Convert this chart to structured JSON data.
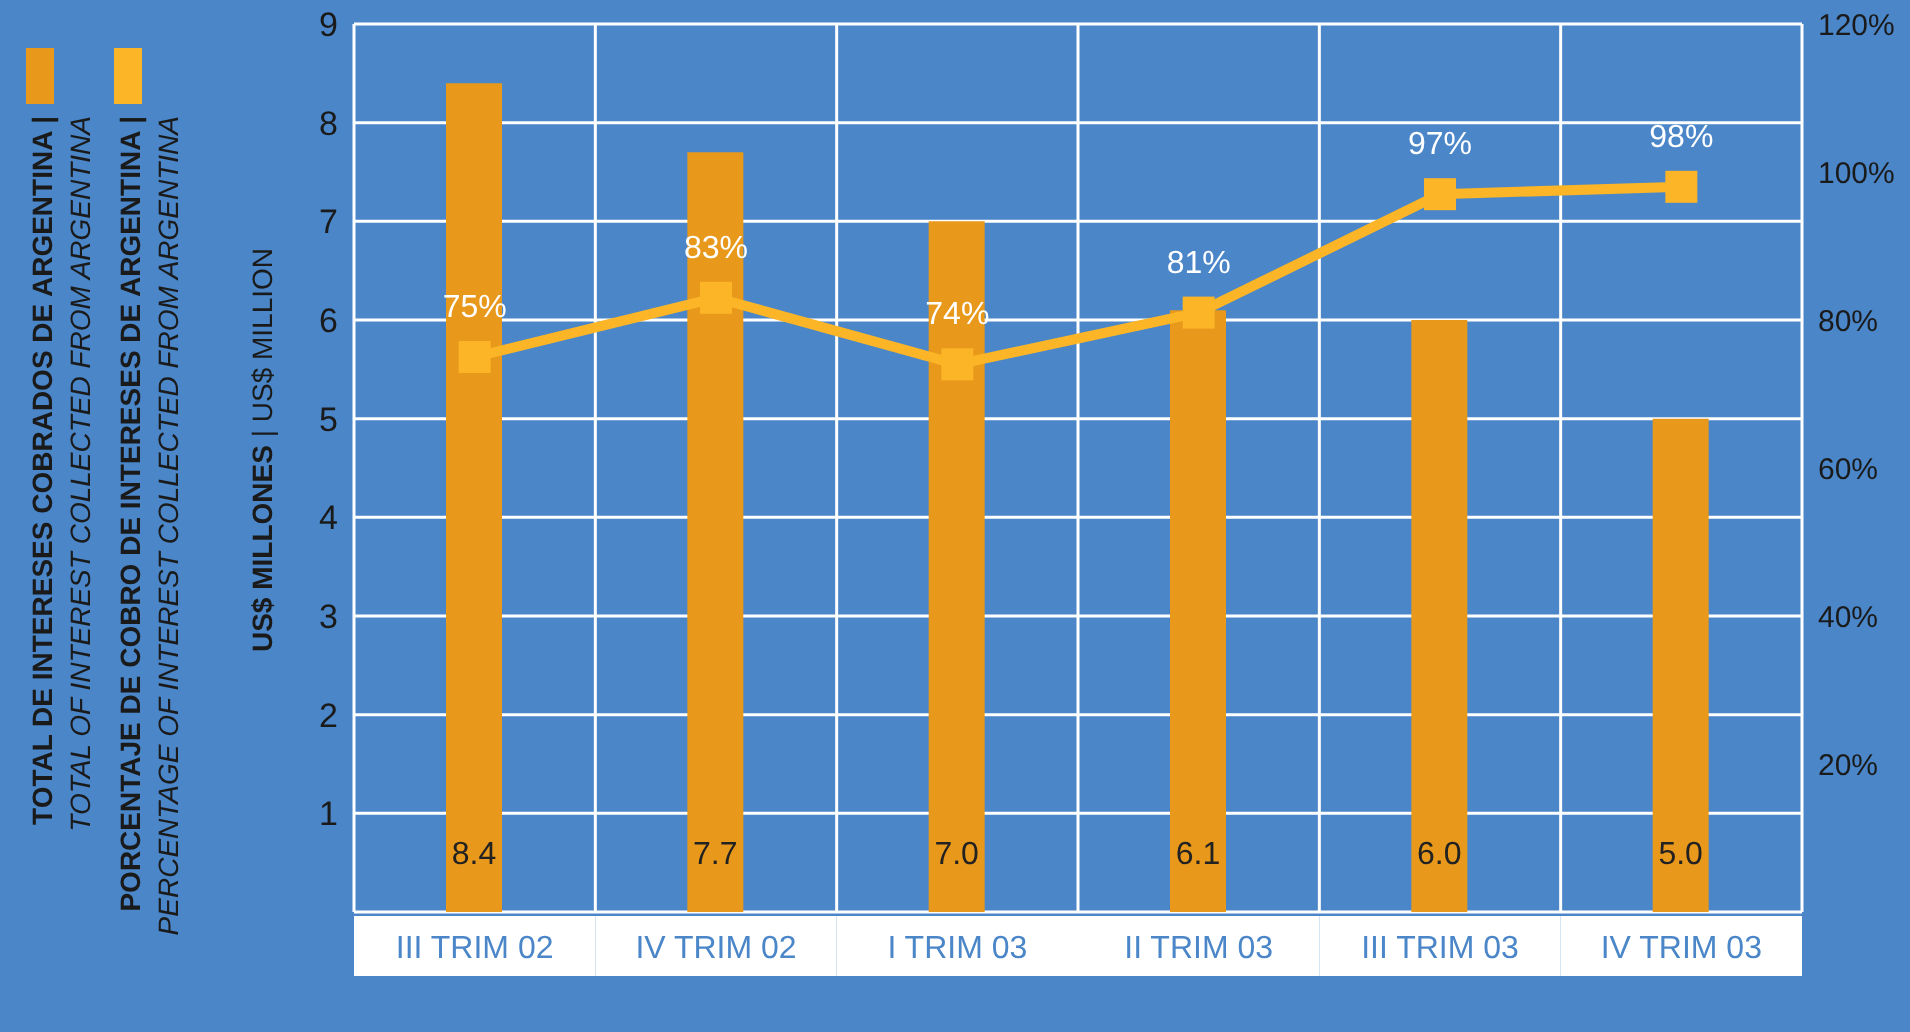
{
  "chart_data": {
    "type": "bar",
    "categories": [
      "III TRIM 02",
      "IV TRIM 02",
      "I TRIM 03",
      "II TRIM 03",
      "III TRIM 03",
      "IV TRIM 03"
    ],
    "ylabel": "US$ MILLONES | US$ MILLION",
    "ylim": [
      0,
      9
    ],
    "yticks": [
      1,
      2,
      3,
      4,
      5,
      6,
      7,
      8,
      9
    ],
    "y2lim": [
      0,
      120
    ],
    "y2ticks": [
      {
        "value": 20,
        "label": "20%"
      },
      {
        "value": 40,
        "label": "40%"
      },
      {
        "value": 60,
        "label": "60%"
      },
      {
        "value": 80,
        "label": "80%"
      },
      {
        "value": 100,
        "label": "100%"
      },
      {
        "value": 120,
        "label": "120%"
      }
    ],
    "grid": true,
    "legend": "left",
    "marker": "square",
    "series": [
      {
        "name": "TOTAL DE INTERESES COBRADOS DE ARGENTINA | TOTAL OF INTEREST COLLECTED FROM ARGENTINA",
        "color": "#e8981a",
        "values": [
          8.4,
          7.7,
          7,
          6.1,
          6,
          5
        ],
        "value_labels": [
          "8.4",
          "7.7",
          "7.0",
          "6.1",
          "6.0",
          "5.0"
        ]
      },
      {
        "name": "PORCENTAJE DE COBRO DE INTERESES DE ARGENTINA | PERCENTAGE OF INTEREST COLLECTED FROM ARGENTINA",
        "type": "line",
        "axis": "y2",
        "color": "#fbb526",
        "values": [
          75,
          83,
          74,
          81,
          97,
          98
        ],
        "value_labels": [
          "75%",
          "83%",
          "74%",
          "81%",
          "97%",
          "98%"
        ]
      }
    ]
  }
}
